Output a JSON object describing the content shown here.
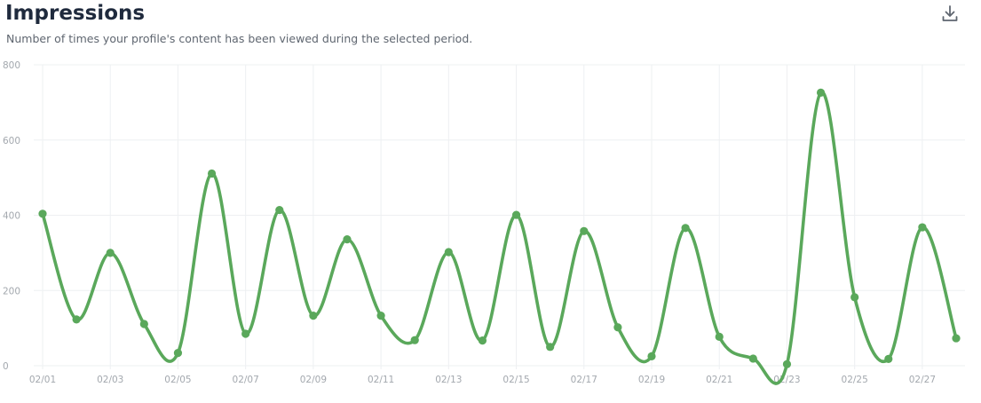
{
  "header": {
    "title": "Impressions",
    "subtitle": "Number of times your profile's content has been viewed during the selected period."
  },
  "icons": {
    "download": "download-icon"
  },
  "colors": {
    "line": "#5aa85b",
    "grid": "#eef0f2",
    "tick_text": "#a3a8ae",
    "title": "#1f2a3d"
  },
  "chart_data": {
    "type": "line",
    "title": "Impressions",
    "subtitle": "Number of times your profile's content has been viewed during the selected period.",
    "xlabel": "",
    "ylabel": "",
    "ylim": [
      0,
      800
    ],
    "yticks": [
      0,
      200,
      400,
      600,
      800
    ],
    "x_tick_labels": [
      "02/01",
      "02/03",
      "02/05",
      "02/07",
      "02/09",
      "02/11",
      "02/13",
      "02/15",
      "02/17",
      "02/19",
      "02/21",
      "02/23",
      "02/25",
      "02/27"
    ],
    "grid": true,
    "x": [
      "02/01",
      "02/02",
      "02/03",
      "02/04",
      "02/05",
      "02/06",
      "02/07",
      "02/08",
      "02/09",
      "02/10",
      "02/11",
      "02/12",
      "02/13",
      "02/14",
      "02/15",
      "02/16",
      "02/17",
      "02/18",
      "02/19",
      "02/20",
      "02/21",
      "02/22",
      "02/23",
      "02/24",
      "02/25",
      "02/26",
      "02/27",
      "02/28"
    ],
    "series": [
      {
        "values": [
          404,
          123,
          300,
          111,
          34,
          511,
          85,
          414,
          133,
          336,
          133,
          68,
          302,
          67,
          401,
          50,
          358,
          102,
          25,
          366,
          77,
          19,
          4,
          726,
          182,
          18,
          368,
          73
        ]
      }
    ]
  }
}
